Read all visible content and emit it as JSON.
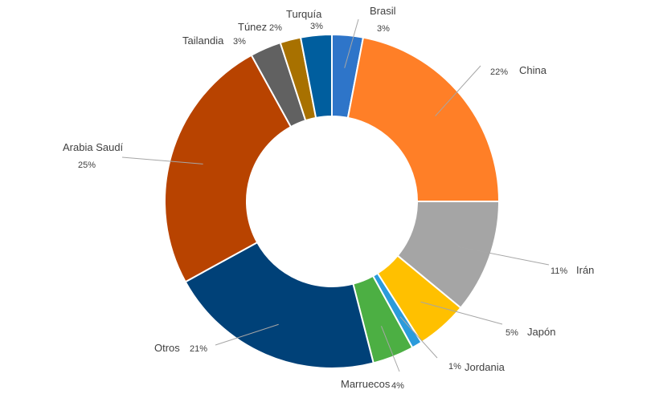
{
  "chart_data": {
    "type": "pie",
    "variant": "donut",
    "title": "",
    "legend": "none",
    "slices": [
      {
        "name": "Brasil",
        "value": 3,
        "label": "3%",
        "color": "#2E75C9"
      },
      {
        "name": "China",
        "value": 22,
        "label": "22%",
        "color": "#FF7F27"
      },
      {
        "name": "Irán",
        "value": 11,
        "label": "11%",
        "color": "#A5A5A5"
      },
      {
        "name": "Japón",
        "value": 5,
        "label": "5%",
        "color": "#FFC000"
      },
      {
        "name": "Jordania",
        "value": 1,
        "label": "1%",
        "color": "#2B9BDB"
      },
      {
        "name": "Marruecos",
        "value": 4,
        "label": "4%",
        "color": "#4CAF43"
      },
      {
        "name": "Otros",
        "value": 21,
        "label": "21%",
        "color": "#004178"
      },
      {
        "name": "Arabia Saudí",
        "value": 25,
        "label": "25%",
        "color": "#B84300"
      },
      {
        "name": "Tailandia",
        "value": 3,
        "label": "3%",
        "color": "#616161"
      },
      {
        "name": "Túnez",
        "value": 2,
        "label": "2%",
        "color": "#A87100"
      },
      {
        "name": "Turquía",
        "value": 3,
        "label": "3%",
        "color": "#005E9E"
      }
    ]
  }
}
